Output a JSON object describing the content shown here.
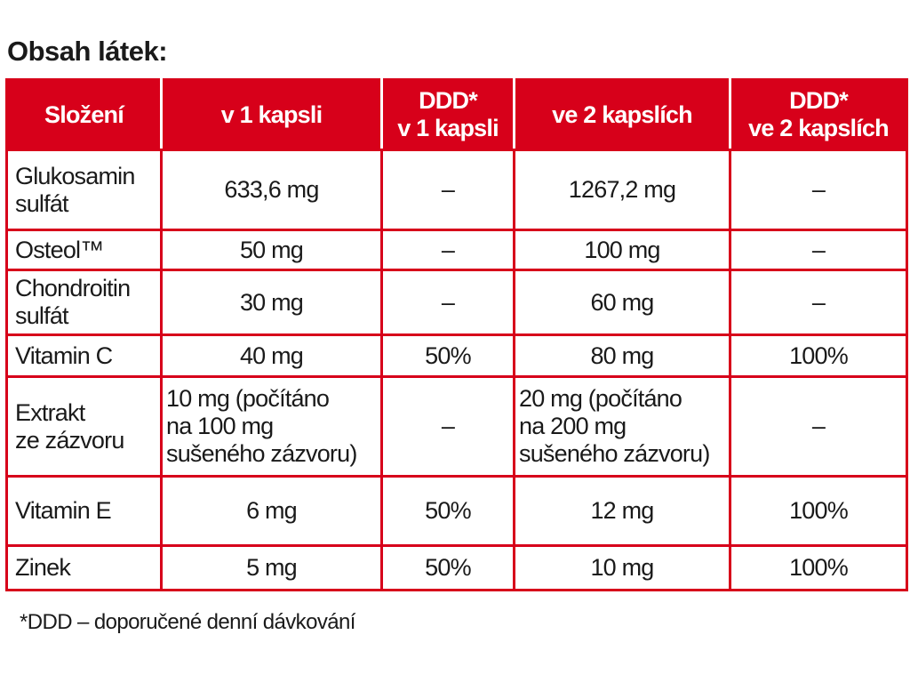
{
  "title": "Obsah látek:",
  "table": {
    "header": [
      "Složení",
      "v 1 kapsli",
      "DDD*\nv 1 kapsli",
      "ve 2 kapslích",
      "DDD*\nve 2 kapslích"
    ],
    "rows": [
      [
        "Glukosamin\nsulfát",
        "633,6 mg",
        "–",
        "1267,2 mg",
        "–"
      ],
      [
        "Osteol™",
        "50 mg",
        "–",
        "100 mg",
        "–"
      ],
      [
        "Chondroitin\nsulfát",
        "30 mg",
        "–",
        "60 mg",
        "–"
      ],
      [
        "Vitamin C",
        "40 mg",
        "50%",
        "80 mg",
        "100%"
      ],
      [
        "Extrakt\nze zázvoru",
        "10 mg (počítáno\nna 100 mg\nsušeného zázvoru)",
        "–",
        "20 mg (počítáno\nna 200 mg\nsušeného zázvoru)",
        "–"
      ],
      [
        "Vitamin E",
        "6 mg",
        "50%",
        "12 mg",
        "100%"
      ],
      [
        "Zinek",
        "5 mg",
        "50%",
        "10 mg",
        "100%"
      ]
    ]
  },
  "footnote": "*DDD – doporučené denní dávkování"
}
